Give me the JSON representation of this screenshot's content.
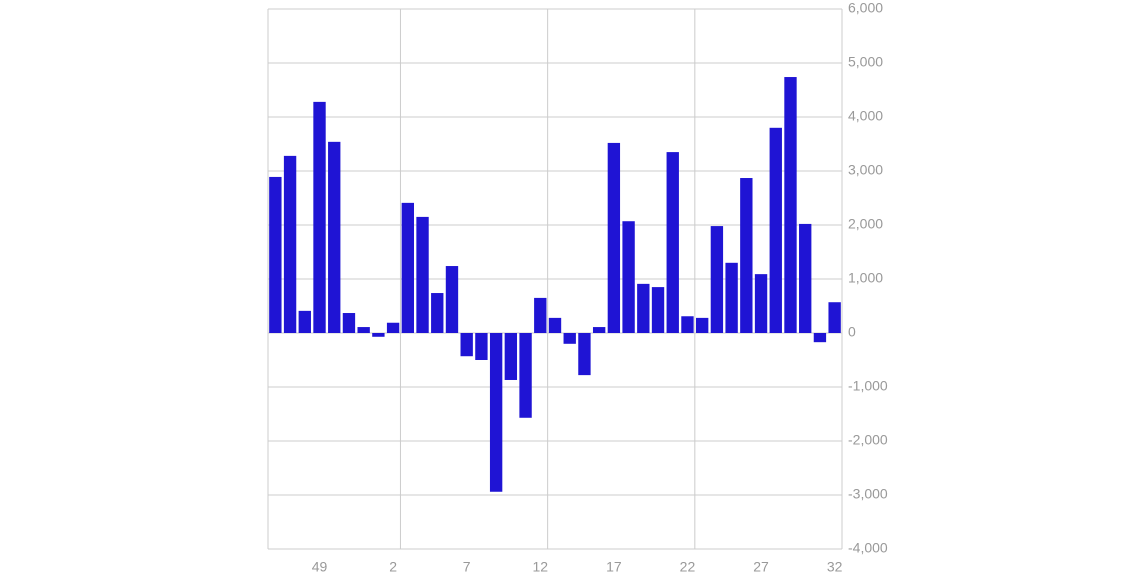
{
  "chart_data": {
    "type": "bar",
    "categories": [
      null,
      null,
      null,
      "49",
      null,
      null,
      null,
      null,
      "2",
      null,
      null,
      null,
      null,
      "7",
      null,
      null,
      null,
      null,
      "12",
      null,
      null,
      null,
      null,
      "17",
      null,
      null,
      null,
      null,
      "22",
      null,
      null,
      null,
      null,
      "27",
      null,
      null,
      null,
      null,
      "32"
    ],
    "values": [
      2890,
      3280,
      410,
      4280,
      3540,
      370,
      110,
      -70,
      190,
      2410,
      2150,
      740,
      1240,
      -430,
      -500,
      -2940,
      -870,
      -1570,
      650,
      280,
      -200,
      -780,
      110,
      3520,
      2070,
      910,
      850,
      3350,
      310,
      280,
      1980,
      1300,
      2870,
      1090,
      3800,
      4740,
      2020,
      -170,
      570
    ],
    "color": "#1f14d4",
    "ylim": [
      -4000,
      6000
    ],
    "yticks": [
      {
        "value": -4000,
        "label": "-4,000"
      },
      {
        "value": -3000,
        "label": "-3,000"
      },
      {
        "value": -2000,
        "label": "-2,000"
      },
      {
        "value": -1000,
        "label": "-1,000"
      },
      0,
      {
        "value": 1000,
        "label": "1,000"
      },
      {
        "value": 2000,
        "label": "2,000"
      },
      {
        "value": 3000,
        "label": "3,000"
      },
      {
        "value": 4000,
        "label": "4,000"
      },
      {
        "value": 5000,
        "label": "5,000"
      },
      {
        "value": 6000,
        "label": "6,000"
      }
    ],
    "grid": true
  }
}
